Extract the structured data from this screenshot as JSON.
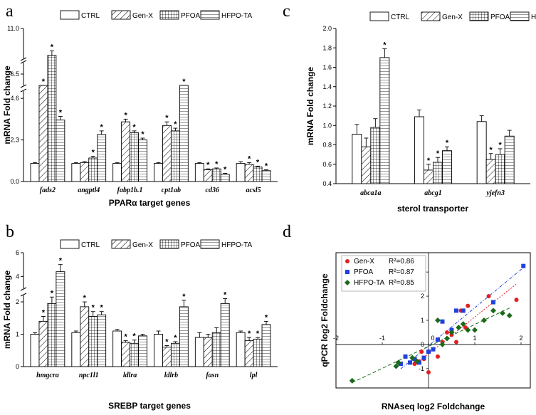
{
  "panel_labels": [
    "a",
    "b",
    "c",
    "d"
  ],
  "colors": {
    "gen_x_point": "#e02020",
    "pfoa_point": "#2040e0",
    "hfpo_point": "#1a6a1a"
  },
  "chart_data": [
    {
      "id": "a",
      "type": "bar",
      "ylabel": "mRNA Fold change",
      "xlabel": "PPARα  target genes",
      "categories": [
        "fads2",
        "angptl4",
        "fabp1b.1",
        "cpt1ab",
        "cd36",
        "acsl5"
      ],
      "y_ticks": [
        "0.0",
        "2.3",
        "4.6",
        "6.5",
        "11.0"
      ],
      "legend": [
        "CTRL",
        "Gen-X",
        "PFOA",
        "HFPO-TA"
      ],
      "series": [
        {
          "name": "CTRL",
          "pattern": "none",
          "values": [
            1.0,
            1.0,
            1.0,
            1.0,
            1.0,
            1.0
          ],
          "errors": [
            0.05,
            0.05,
            0.05,
            0.05,
            0.05,
            0.1
          ],
          "stars": [
            false,
            false,
            false,
            false,
            false,
            false
          ]
        },
        {
          "name": "Gen-X",
          "pattern": "diag",
          "values": [
            5.2,
            1.05,
            3.3,
            3.1,
            0.65,
            0.95
          ],
          "errors": [
            0.2,
            0.05,
            0.15,
            0.2,
            0.05,
            0.1
          ],
          "stars": [
            true,
            false,
            true,
            true,
            true,
            true
          ]
        },
        {
          "name": "PFOA",
          "pattern": "grid",
          "values": [
            9.2,
            1.3,
            2.7,
            2.8,
            0.7,
            0.8
          ],
          "errors": [
            0.3,
            0.1,
            0.1,
            0.15,
            0.05,
            0.05
          ],
          "stars": [
            true,
            true,
            true,
            true,
            true,
            true
          ]
        },
        {
          "name": "HFPO-TA",
          "pattern": "horiz",
          "values": [
            3.4,
            2.6,
            2.3,
            5.5,
            0.4,
            0.6
          ],
          "errors": [
            0.2,
            0.2,
            0.1,
            0.35,
            0.05,
            0.05
          ],
          "stars": [
            true,
            true,
            true,
            true,
            true,
            true
          ]
        }
      ],
      "y_breaks": [
        [
          5.0,
          6.0
        ],
        [
          7.0,
          9.0
        ]
      ],
      "y_segments": [
        {
          "min": 0.0,
          "max": 5.0
        },
        {
          "min": 6.0,
          "max": 7.0
        },
        {
          "min": 9.0,
          "max": 11.0
        }
      ]
    },
    {
      "id": "b",
      "type": "bar",
      "ylabel": "mRNA Fold change",
      "xlabel": "SREBP target genes",
      "categories": [
        "hmgcra",
        "npc1l1",
        "ldlra",
        "ldlrb",
        "fasn",
        "lpl"
      ],
      "y_ticks": [
        "0",
        "1",
        "2",
        "4",
        "6"
      ],
      "legend": [
        "CTRL",
        "Gen-X",
        "PFOA",
        "HFPO-TA"
      ],
      "series": [
        {
          "name": "CTRL",
          "pattern": "none",
          "values": [
            1.0,
            1.05,
            1.1,
            1.0,
            0.9,
            1.05
          ],
          "errors": [
            0.05,
            0.05,
            0.05,
            0.1,
            0.15,
            0.05
          ],
          "stars": [
            false,
            false,
            false,
            false,
            false,
            false
          ]
        },
        {
          "name": "Gen-X",
          "pattern": "diag",
          "values": [
            1.4,
            1.85,
            0.75,
            0.6,
            0.9,
            0.8
          ],
          "errors": [
            0.15,
            0.15,
            0.05,
            0.05,
            0.1,
            0.1
          ],
          "stars": [
            true,
            true,
            true,
            true,
            false,
            true
          ]
        },
        {
          "name": "PFOA",
          "pattern": "grid",
          "values": [
            1.95,
            1.55,
            0.72,
            0.72,
            1.05,
            0.85
          ],
          "errors": [
            0.2,
            0.15,
            0.1,
            0.05,
            0.15,
            0.05
          ],
          "stars": [
            true,
            true,
            true,
            true,
            false,
            true
          ]
        },
        {
          "name": "HFPO-TA",
          "pattern": "horiz",
          "values": [
            4.4,
            1.6,
            0.95,
            1.85,
            1.95,
            1.3
          ],
          "errors": [
            0.6,
            0.1,
            0.05,
            0.2,
            0.15,
            0.1
          ],
          "stars": [
            true,
            true,
            false,
            true,
            true,
            true
          ]
        }
      ],
      "y_breaks": [
        [
          2.2,
          3.0
        ]
      ],
      "y_segments": [
        {
          "min": 0.0,
          "max": 2.2
        },
        {
          "min": 3.0,
          "max": 6.0
        }
      ]
    },
    {
      "id": "c",
      "type": "bar",
      "ylabel": "mRNA Fold change",
      "xlabel": "sterol transporter",
      "categories": [
        "abca1a",
        "abcg1",
        "yjefn3"
      ],
      "y_ticks": [
        "0.4",
        "0.6",
        "0.8",
        "1.0",
        "1.2",
        "1.4",
        "1.6",
        "1.8",
        "2.0"
      ],
      "ylim": [
        0.4,
        2.0
      ],
      "legend": [
        "CTRL",
        "Gen-X",
        "PFOA",
        "HFPO-TA"
      ],
      "series": [
        {
          "name": "CTRL",
          "pattern": "none",
          "values": [
            0.91,
            1.09,
            1.04
          ],
          "errors": [
            0.1,
            0.07,
            0.06
          ],
          "stars": [
            false,
            false,
            false
          ]
        },
        {
          "name": "Gen-X",
          "pattern": "diag",
          "values": [
            0.78,
            0.54,
            0.65
          ],
          "errors": [
            0.09,
            0.06,
            0.06
          ],
          "stars": [
            false,
            true,
            true
          ]
        },
        {
          "name": "PFOA",
          "pattern": "grid",
          "values": [
            0.98,
            0.62,
            0.7
          ],
          "errors": [
            0.09,
            0.05,
            0.06
          ],
          "stars": [
            false,
            true,
            true
          ]
        },
        {
          "name": "HFPO-TA",
          "pattern": "horiz",
          "values": [
            1.7,
            0.74,
            0.89
          ],
          "errors": [
            0.09,
            0.04,
            0.06
          ],
          "stars": [
            true,
            true,
            false
          ]
        }
      ]
    },
    {
      "id": "d",
      "type": "scatter",
      "xlabel": "RNAseq log2 Foldchange",
      "ylabel": "qPCR log2 Foldchange",
      "xlim": [
        -2,
        2.2
      ],
      "ylim": [
        -1.8,
        3.8
      ],
      "x_ticks": [
        "-2",
        "-1",
        "0",
        "1",
        "2"
      ],
      "y_ticks": [
        "-1",
        "0",
        "1",
        "2",
        "3"
      ],
      "series": [
        {
          "name": "Gen-X",
          "r2_label": "R²=0.86",
          "marker": "circle",
          "points": [
            [
              -0.3,
              -0.8
            ],
            [
              -0.2,
              -0.7
            ],
            [
              -0.15,
              -0.3
            ],
            [
              0.0,
              -1.15
            ],
            [
              0.2,
              -0.5
            ],
            [
              0.3,
              0.1
            ],
            [
              0.4,
              0.5
            ],
            [
              0.5,
              0.4
            ],
            [
              0.6,
              0.1
            ],
            [
              0.7,
              1.4
            ],
            [
              0.8,
              0.7
            ],
            [
              0.85,
              1.6
            ],
            [
              1.3,
              2.0
            ],
            [
              1.9,
              1.85
            ],
            [
              -0.1,
              -0.6
            ]
          ]
        },
        {
          "name": "PFOA",
          "r2_label": "R²=0.87",
          "marker": "square",
          "points": [
            [
              -0.6,
              -0.8
            ],
            [
              -0.5,
              -0.5
            ],
            [
              -0.4,
              -0.75
            ],
            [
              -0.3,
              -0.6
            ],
            [
              -0.2,
              -0.75
            ],
            [
              -0.1,
              -0.55
            ],
            [
              0.0,
              -0.3
            ],
            [
              0.1,
              -0.2
            ],
            [
              0.3,
              0.95
            ],
            [
              0.5,
              0.6
            ],
            [
              0.6,
              1.4
            ],
            [
              0.75,
              1.4
            ],
            [
              1.4,
              1.75
            ],
            [
              2.05,
              3.25
            ],
            [
              0.2,
              0.2
            ]
          ]
        },
        {
          "name": "HFPO-TA",
          "r2_label": "R²=0.85",
          "marker": "diamond",
          "points": [
            [
              -1.65,
              -1.5
            ],
            [
              -0.7,
              -0.9
            ],
            [
              -0.65,
              -0.75
            ],
            [
              -0.35,
              -0.55
            ],
            [
              -0.25,
              -0.7
            ],
            [
              0.3,
              0.0
            ],
            [
              0.4,
              0.25
            ],
            [
              0.5,
              0.5
            ],
            [
              0.65,
              0.7
            ],
            [
              0.75,
              0.85
            ],
            [
              0.85,
              0.6
            ],
            [
              1.0,
              0.6
            ],
            [
              1.2,
              1.0
            ],
            [
              1.4,
              1.4
            ],
            [
              1.6,
              1.3
            ],
            [
              1.75,
              1.2
            ],
            [
              0.2,
              1.0
            ]
          ]
        }
      ]
    }
  ]
}
